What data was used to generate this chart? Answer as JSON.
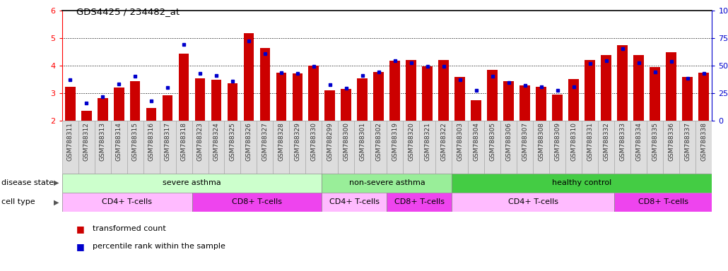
{
  "title": "GDS4425 / 234482_at",
  "samples": [
    "GSM788311",
    "GSM788312",
    "GSM788313",
    "GSM788314",
    "GSM788315",
    "GSM788316",
    "GSM788317",
    "GSM788318",
    "GSM788323",
    "GSM788324",
    "GSM788325",
    "GSM788326",
    "GSM788327",
    "GSM788328",
    "GSM788329",
    "GSM788330",
    "GSM788299",
    "GSM788300",
    "GSM788301",
    "GSM788302",
    "GSM788319",
    "GSM788320",
    "GSM788321",
    "GSM788322",
    "GSM788303",
    "GSM788304",
    "GSM788305",
    "GSM788306",
    "GSM788307",
    "GSM788308",
    "GSM788309",
    "GSM788310",
    "GSM788331",
    "GSM788332",
    "GSM788333",
    "GSM788334",
    "GSM788335",
    "GSM788336",
    "GSM788337",
    "GSM788338"
  ],
  "bar_values": [
    3.22,
    2.35,
    2.83,
    3.2,
    3.45,
    2.45,
    2.92,
    4.45,
    3.55,
    3.48,
    3.35,
    5.18,
    4.65,
    3.75,
    3.72,
    4.0,
    3.1,
    3.15,
    3.55,
    3.78,
    4.18,
    4.22,
    3.98,
    4.22,
    3.6,
    2.75,
    3.85,
    3.45,
    3.28,
    3.22,
    2.95,
    3.52,
    4.22,
    4.38,
    4.75,
    4.38,
    3.95,
    4.48,
    3.6,
    3.75
  ],
  "blue_values": [
    3.48,
    2.63,
    2.88,
    3.33,
    3.62,
    2.72,
    3.2,
    4.78,
    3.72,
    3.65,
    3.45,
    4.9,
    4.45,
    3.75,
    3.72,
    3.98,
    3.3,
    3.18,
    3.65,
    3.78,
    4.18,
    4.1,
    3.98,
    3.98,
    3.5,
    3.1,
    3.62,
    3.38,
    3.28,
    3.22,
    3.1,
    3.22,
    4.08,
    4.18,
    4.62,
    4.1,
    3.78,
    4.15,
    3.55,
    3.72
  ],
  "ylim_left": [
    2,
    6
  ],
  "ylim_right": [
    0,
    100
  ],
  "yticks_left": [
    2,
    3,
    4,
    5,
    6
  ],
  "yticks_right": [
    0,
    25,
    50,
    75,
    100
  ],
  "bar_color": "#cc0000",
  "blue_color": "#0000cc",
  "disease_groups": [
    {
      "label": "severe asthma",
      "start": 0,
      "end": 15,
      "color": "#ccffcc"
    },
    {
      "label": "non-severe asthma",
      "start": 16,
      "end": 23,
      "color": "#99ee99"
    },
    {
      "label": "healthy control",
      "start": 24,
      "end": 39,
      "color": "#44cc44"
    }
  ],
  "cell_groups": [
    {
      "label": "CD4+ T-cells",
      "start": 0,
      "end": 7,
      "color": "#ffbbff"
    },
    {
      "label": "CD8+ T-cells",
      "start": 8,
      "end": 15,
      "color": "#ee44ee"
    },
    {
      "label": "CD4+ T-cells",
      "start": 16,
      "end": 19,
      "color": "#ffbbff"
    },
    {
      "label": "CD8+ T-cells",
      "start": 20,
      "end": 23,
      "color": "#ee44ee"
    },
    {
      "label": "CD4+ T-cells",
      "start": 24,
      "end": 33,
      "color": "#ffbbff"
    },
    {
      "label": "CD8+ T-cells",
      "start": 34,
      "end": 39,
      "color": "#ee44ee"
    }
  ],
  "legend_bar_label": "transformed count",
  "legend_blue_label": "percentile rank within the sample",
  "disease_label": "disease state",
  "cell_label": "cell type",
  "bar_width": 0.65,
  "right_axis_color": "#0000cc",
  "tick_bg_color": "#dddddd",
  "tick_label_color": "#333333"
}
